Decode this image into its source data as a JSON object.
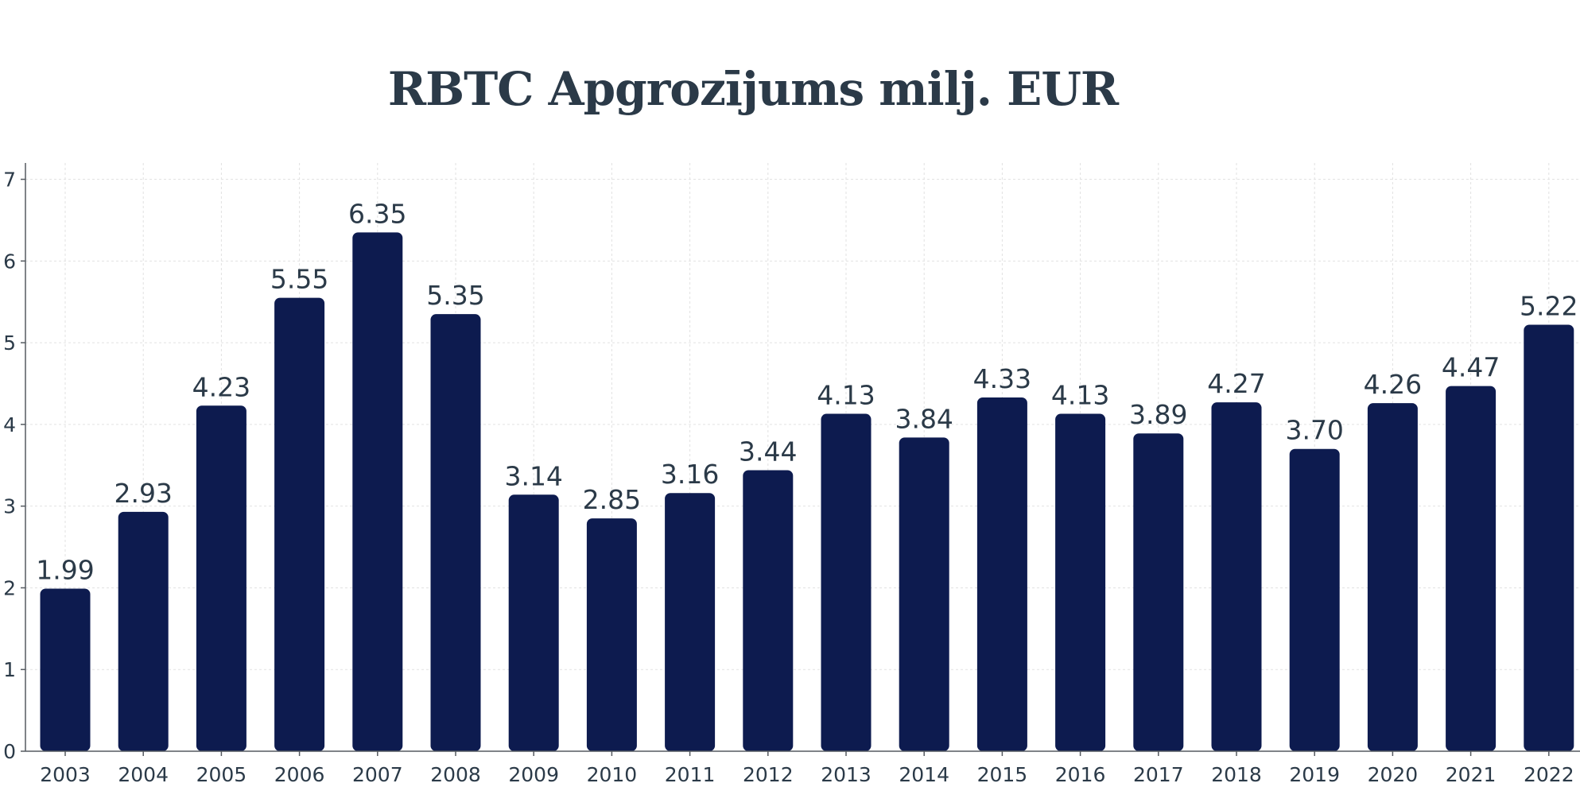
{
  "chart_data": {
    "type": "bar",
    "title": "RBTC Apgrozījums milj. EUR",
    "xlabel": "",
    "ylabel": "",
    "categories": [
      "2003",
      "2004",
      "2005",
      "2006",
      "2007",
      "2008",
      "2009",
      "2010",
      "2011",
      "2012",
      "2013",
      "2014",
      "2015",
      "2016",
      "2017",
      "2018",
      "2019",
      "2020",
      "2021",
      "2022"
    ],
    "values": [
      1.99,
      2.93,
      4.23,
      5.55,
      6.35,
      5.35,
      3.14,
      2.85,
      3.16,
      3.44,
      4.13,
      3.84,
      4.33,
      4.13,
      3.89,
      4.27,
      3.7,
      4.26,
      4.47,
      5.22
    ],
    "data_labels": [
      "1.99",
      "2.93",
      "4.23",
      "5.55",
      "6.35",
      "5.35",
      "3.14",
      "2.85",
      "3.16",
      "3.44",
      "4.13",
      "3.84",
      "4.33",
      "4.13",
      "3.89",
      "4.27",
      "3.70",
      "4.26",
      "4.47",
      "5.22"
    ],
    "y_ticks": [
      "0",
      "1",
      "2",
      "3",
      "4",
      "5",
      "6",
      "7"
    ],
    "ylim": [
      0,
      7.2
    ],
    "grid": true,
    "legend": "none",
    "bar_color": "#0d1b4f",
    "text_color": "#2b3a48"
  }
}
